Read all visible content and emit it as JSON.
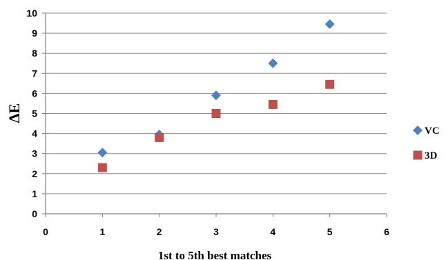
{
  "chart_data": {
    "type": "scatter",
    "title": "",
    "xlabel": "1st to 5th best matches",
    "ylabel": "ΔE",
    "xlim": [
      0,
      6
    ],
    "ylim": [
      0,
      10
    ],
    "x_ticks": [
      "0",
      "1",
      "2",
      "3",
      "4",
      "5",
      "6"
    ],
    "y_ticks": [
      "0",
      "1",
      "2",
      "3",
      "4",
      "5",
      "6",
      "7",
      "8",
      "9",
      "10"
    ],
    "grid": "horizontal",
    "legend_position": "right",
    "series": [
      {
        "name": "VC",
        "marker": "diamond",
        "color": "#4f81bd",
        "points": [
          {
            "x": 1,
            "y": 3.05
          },
          {
            "x": 2,
            "y": 3.95
          },
          {
            "x": 3,
            "y": 5.9
          },
          {
            "x": 4,
            "y": 7.5
          },
          {
            "x": 5,
            "y": 9.45
          }
        ]
      },
      {
        "name": "3D",
        "marker": "square",
        "color": "#c0504d",
        "points": [
          {
            "x": 1,
            "y": 2.3
          },
          {
            "x": 2,
            "y": 3.8
          },
          {
            "x": 3,
            "y": 5.0
          },
          {
            "x": 4,
            "y": 5.45
          },
          {
            "x": 5,
            "y": 6.45
          }
        ]
      }
    ]
  }
}
